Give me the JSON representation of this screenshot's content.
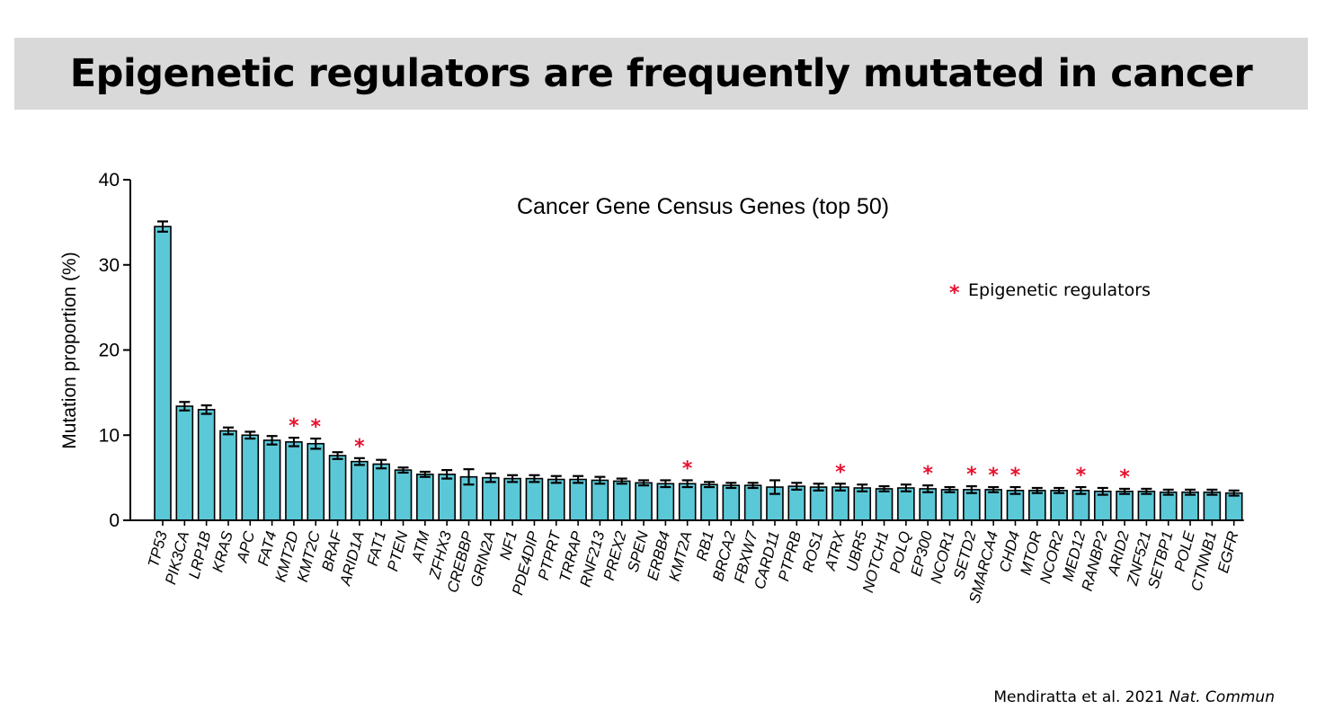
{
  "slide": {
    "title": "Epigenetic regulators are frequently mutated in cancer",
    "citation_authors": "Mendiratta et al. 2021",
    "citation_journal": "Nat. Commun"
  },
  "colors": {
    "bar_fill": "#5bc8d7",
    "bar_stroke": "#000000",
    "marker": "#e8102e",
    "banner": "#d9d9d9"
  },
  "chart_data": {
    "type": "bar",
    "title": "Cancer Gene Census Genes (top 50)",
    "xlabel": "",
    "ylabel": "Mutation proportion (%)",
    "ylim": [
      0,
      40
    ],
    "yticks": [
      0,
      10,
      20,
      30,
      40
    ],
    "legend_marker": "*",
    "legend_label": "Epigenetic regulators",
    "categories": [
      "TP53",
      "PIK3CA",
      "LRP1B",
      "KRAS",
      "APC",
      "FAT4",
      "KMT2D",
      "KMT2C",
      "BRAF",
      "ARID1A",
      "FAT1",
      "PTEN",
      "ATM",
      "ZFHX3",
      "CREBBP",
      "GRIN2A",
      "NF1",
      "PDE4DIP",
      "PTPRT",
      "TRRAP",
      "RNF213",
      "PREX2",
      "SPEN",
      "ERBB4",
      "KMT2A",
      "RB1",
      "BRCA2",
      "FBXW7",
      "CARD11",
      "PTPRB",
      "ROS1",
      "ATRX",
      "UBR5",
      "NOTCH1",
      "POLQ",
      "EP300",
      "NCOR1",
      "SETD2",
      "SMARCA4",
      "CHD4",
      "MTOR",
      "NCOR2",
      "MED12",
      "RANBP2",
      "ARID2",
      "ZNF521",
      "SETBP1",
      "POLE",
      "CTNNB1",
      "EGFR"
    ],
    "values": [
      34.5,
      13.4,
      13.0,
      10.5,
      10.0,
      9.4,
      9.2,
      9.0,
      7.6,
      6.9,
      6.6,
      5.9,
      5.4,
      5.4,
      5.1,
      5.0,
      4.9,
      4.9,
      4.8,
      4.8,
      4.7,
      4.6,
      4.4,
      4.3,
      4.3,
      4.2,
      4.1,
      4.1,
      3.9,
      4.0,
      3.9,
      3.9,
      3.8,
      3.7,
      3.8,
      3.7,
      3.6,
      3.6,
      3.6,
      3.5,
      3.5,
      3.5,
      3.5,
      3.4,
      3.4,
      3.4,
      3.3,
      3.3,
      3.3,
      3.2
    ],
    "error": [
      0.6,
      0.5,
      0.5,
      0.4,
      0.4,
      0.5,
      0.5,
      0.6,
      0.4,
      0.4,
      0.5,
      0.3,
      0.3,
      0.5,
      0.9,
      0.5,
      0.4,
      0.4,
      0.4,
      0.4,
      0.4,
      0.3,
      0.3,
      0.4,
      0.4,
      0.3,
      0.3,
      0.3,
      0.8,
      0.4,
      0.4,
      0.4,
      0.4,
      0.3,
      0.4,
      0.4,
      0.3,
      0.4,
      0.3,
      0.4,
      0.3,
      0.3,
      0.4,
      0.4,
      0.3,
      0.3,
      0.3,
      0.3,
      0.3,
      0.3
    ],
    "epigenetic_regulators": [
      "KMT2D",
      "KMT2C",
      "ARID1A",
      "KMT2A",
      "ATRX",
      "EP300",
      "SETD2",
      "SMARCA4",
      "CHD4",
      "MED12",
      "ARID2"
    ]
  }
}
